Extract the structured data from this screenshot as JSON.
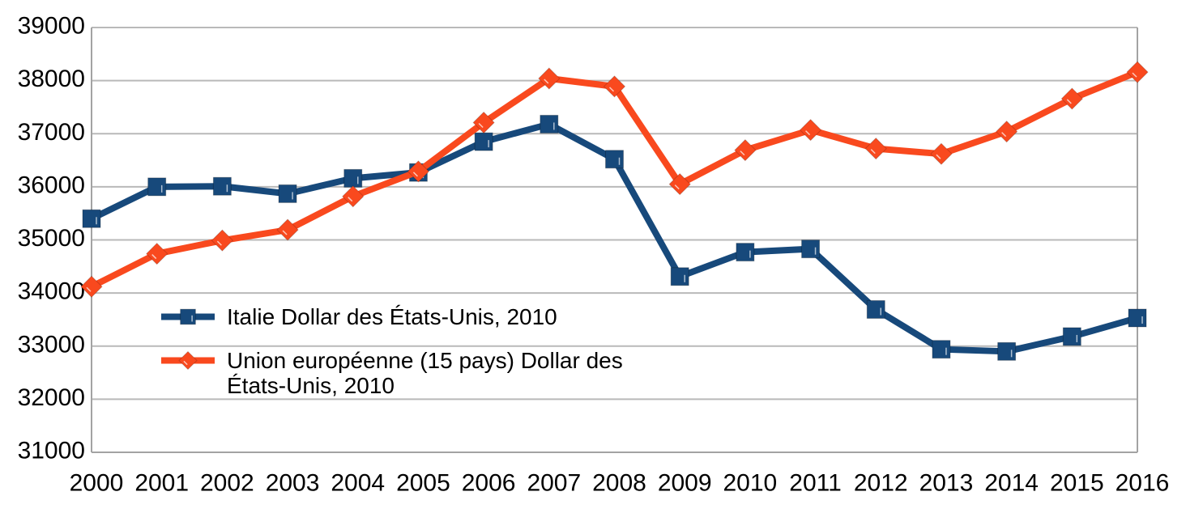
{
  "chart_data": {
    "type": "line",
    "title": "",
    "xlabel": "",
    "ylabel": "",
    "x": [
      2000,
      2001,
      2002,
      2003,
      2004,
      2005,
      2006,
      2007,
      2008,
      2009,
      2010,
      2011,
      2012,
      2013,
      2014,
      2015,
      2016
    ],
    "series": [
      {
        "name": "Italie Dollar des États-Unis, 2010",
        "marker": "square",
        "color": "#17497B",
        "values": [
          35400,
          36000,
          36010,
          35870,
          36160,
          36270,
          36850,
          37180,
          36520,
          34310,
          34770,
          34830,
          33690,
          32940,
          32900,
          33180,
          33530
        ]
      },
      {
        "name": "Union européenne (15 pays) Dollar des États-Unis, 2010",
        "marker": "diamond",
        "color": "#F9491E",
        "values": [
          34120,
          34740,
          34990,
          35190,
          35820,
          36290,
          37210,
          38040,
          37890,
          36050,
          36690,
          37070,
          36720,
          36620,
          37040,
          37660,
          38160
        ]
      }
    ],
    "ylim": [
      31000,
      39000
    ],
    "ytick_step": 1000,
    "grid": true,
    "legend_position": "inside-left-middle",
    "legend": [
      {
        "lines": [
          "Italie Dollar des États-Unis, 2010"
        ]
      },
      {
        "lines": [
          "Union européenne (15 pays) Dollar des",
          "États-Unis, 2010"
        ]
      }
    ],
    "colors": {
      "gridline": "#b9b9b9",
      "axis": "#a3a3a3",
      "text": "#000000",
      "background": "#ffffff"
    }
  }
}
